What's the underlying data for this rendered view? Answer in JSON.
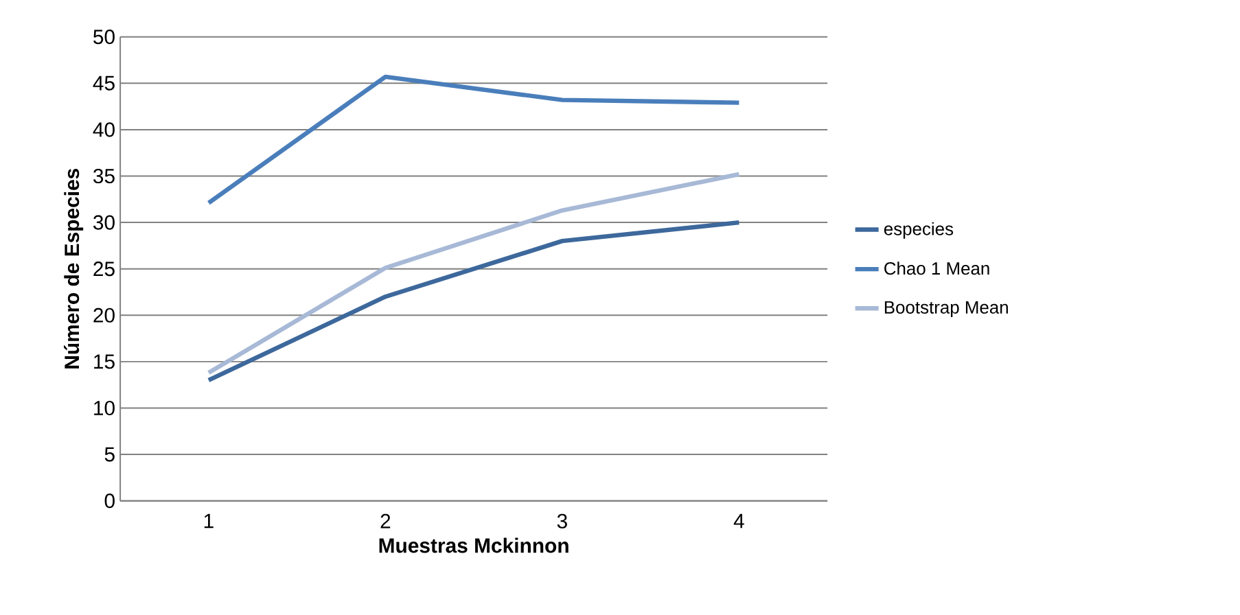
{
  "chart_data": {
    "type": "line",
    "xlabel": "Muestras Mckinnon",
    "ylabel": "Número de Especies",
    "categories": [
      "1",
      "2",
      "3",
      "4"
    ],
    "series": [
      {
        "name": "especies",
        "color": "#3d689c",
        "values": [
          13,
          22,
          28,
          30
        ]
      },
      {
        "name": "Chao 1 Mean",
        "color": "#4a7ebb",
        "values": [
          32.1,
          45.7,
          43.2,
          42.9
        ]
      },
      {
        "name": "Bootstrap Mean",
        "color": "#a7b9d6",
        "values": [
          13.8,
          25.1,
          31.3,
          35.2
        ]
      }
    ],
    "ylim": [
      0,
      50
    ],
    "yticks": [
      0,
      5,
      10,
      15,
      20,
      25,
      30,
      35,
      40,
      45,
      50
    ],
    "grid": "y",
    "legend": "right",
    "marker": "none",
    "line_style": "solid"
  }
}
